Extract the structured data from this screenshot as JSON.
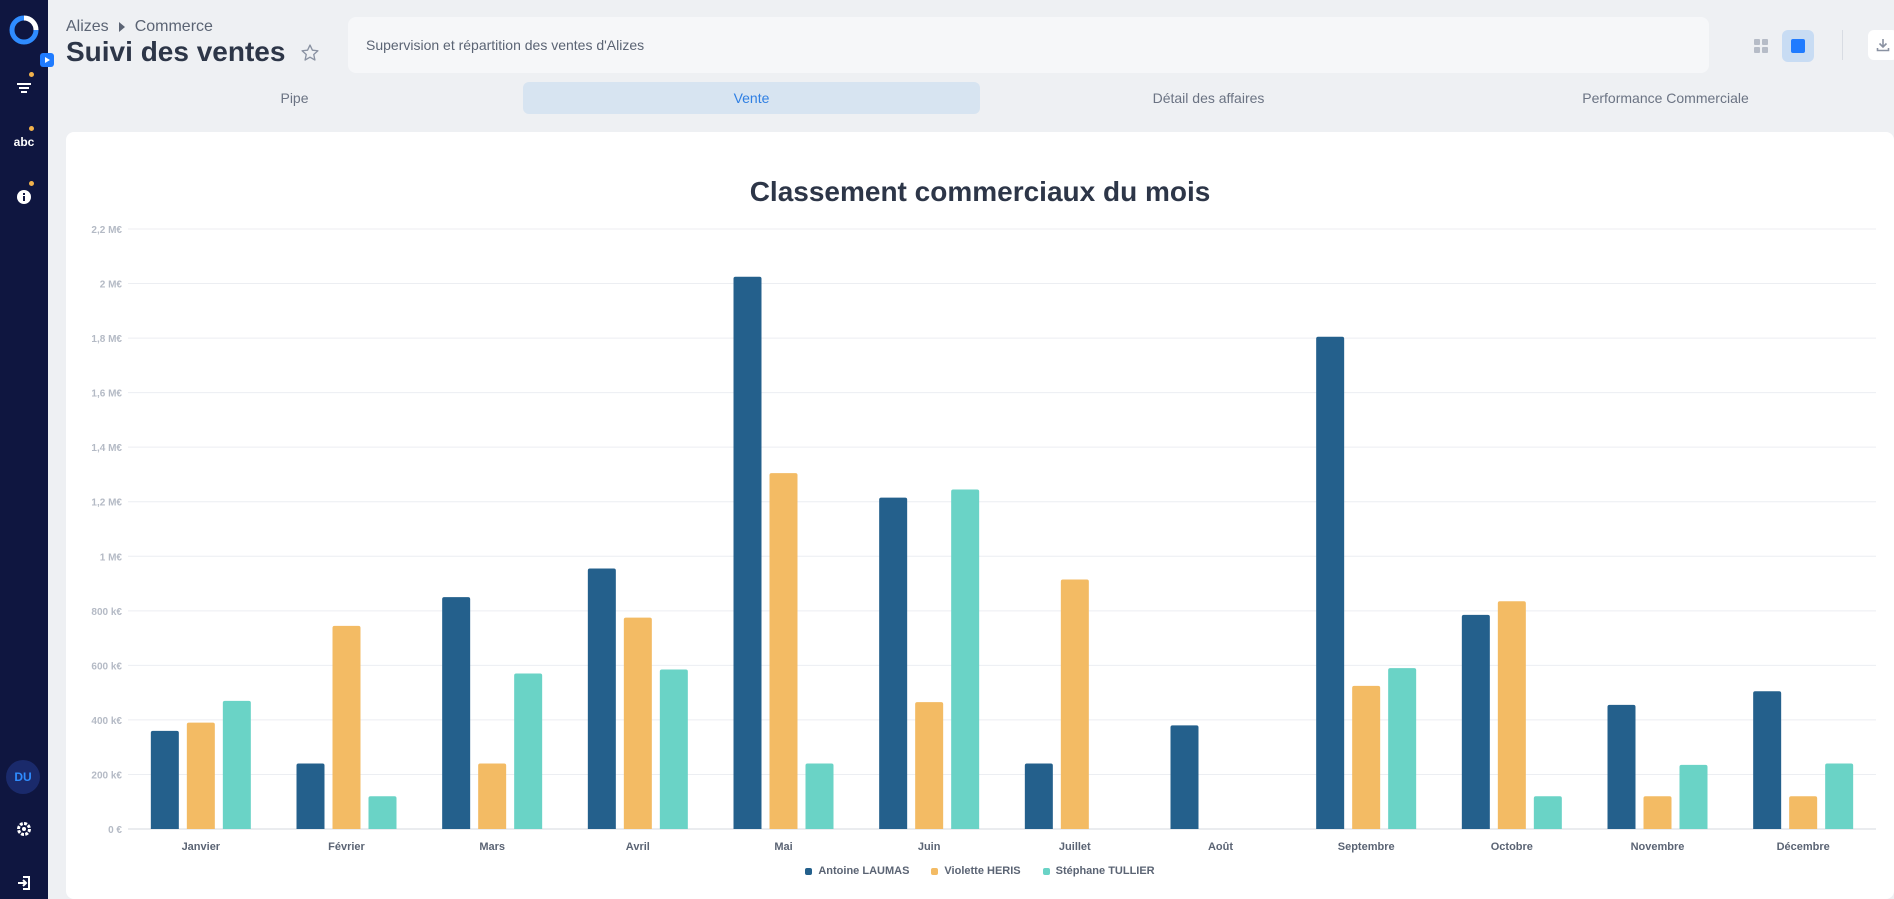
{
  "sidebar": {
    "logo_icon": "app-logo",
    "items": [
      {
        "name": "filter-icon"
      },
      {
        "name": "abc-icon",
        "label": "abc"
      },
      {
        "name": "info-icon"
      }
    ],
    "user_initials": "DU",
    "accent_color": "#f2b24c"
  },
  "header": {
    "breadcrumb": [
      "Alizes",
      "Commerce"
    ],
    "title": "Suivi des ventes",
    "description": "Supervision et répartition des ventes d'Alizes"
  },
  "tabs": [
    {
      "label": "Pipe",
      "active": false
    },
    {
      "label": "Vente",
      "active": true
    },
    {
      "label": "Détail des affaires",
      "active": false
    },
    {
      "label": "Performance Commerciale",
      "active": false
    }
  ],
  "chart_data": {
    "type": "bar",
    "title": "Classement commerciaux du mois",
    "categories": [
      "Janvier",
      "Février",
      "Mars",
      "Avril",
      "Mai",
      "Juin",
      "Juillet",
      "Août",
      "Septembre",
      "Octobre",
      "Novembre",
      "Décembre"
    ],
    "series": [
      {
        "name": "Antoine LAUMAS",
        "color": "#24608c",
        "values": [
          360000,
          240000,
          850000,
          955000,
          2025000,
          1215000,
          240000,
          380000,
          1805000,
          785000,
          455000,
          505000
        ]
      },
      {
        "name": "Violette HERIS",
        "color": "#f3bb64",
        "values": [
          390000,
          745000,
          240000,
          775000,
          1305000,
          465000,
          915000,
          0,
          525000,
          835000,
          120000,
          120000
        ]
      },
      {
        "name": "Stéphane TULLIER",
        "color": "#6ad3c6",
        "values": [
          470000,
          120000,
          570000,
          585000,
          240000,
          1245000,
          0,
          0,
          590000,
          120000,
          235000,
          240000
        ]
      }
    ],
    "ylim": [
      0,
      2200000
    ],
    "yticks": [
      {
        "value": 0,
        "label": "0 €"
      },
      {
        "value": 200000,
        "label": "200 k€"
      },
      {
        "value": 400000,
        "label": "400 k€"
      },
      {
        "value": 600000,
        "label": "600 k€"
      },
      {
        "value": 800000,
        "label": "800 k€"
      },
      {
        "value": 1000000,
        "label": "1 M€"
      },
      {
        "value": 1200000,
        "label": "1,2 M€"
      },
      {
        "value": 1400000,
        "label": "1,4 M€"
      },
      {
        "value": 1600000,
        "label": "1,6 M€"
      },
      {
        "value": 1800000,
        "label": "1,8 M€"
      },
      {
        "value": 2000000,
        "label": "2 M€"
      },
      {
        "value": 2200000,
        "label": "2,2 M€"
      }
    ],
    "grid": true,
    "legend_position": "bottom"
  }
}
